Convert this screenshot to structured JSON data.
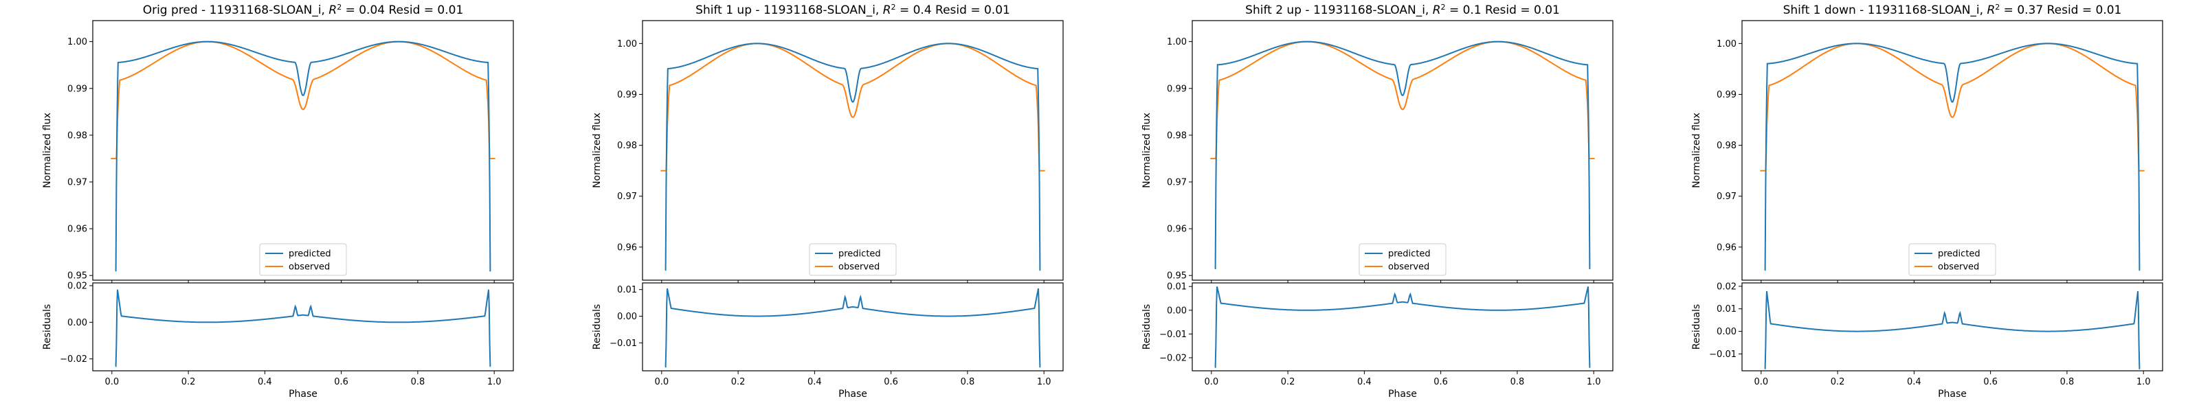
{
  "figure": {
    "background": "#ffffff"
  },
  "series_colors": {
    "predicted": "#1f77b4",
    "observed": "#ff7f0e",
    "residual": "#1f77b4"
  },
  "legend": {
    "placement": "lower center",
    "entries": [
      "predicted",
      "observed"
    ]
  },
  "chart_data": [
    {
      "type": "line",
      "title": "Orig pred - 11931168-SLOAN_i, R^2 = 0.04 Resid = 0.01",
      "title_parts": {
        "prefix": "Orig pred - 11931168-SLOAN_i, ",
        "r2_symbol": "R",
        "r2_exp": "2",
        "suffix": " = 0.04 Resid = 0.01"
      },
      "flux": {
        "ylabel": "Normalized flux",
        "xlim": [
          -0.05,
          1.05
        ],
        "ylim": [
          0.949,
          1.0045
        ],
        "yticks": [
          0.95,
          0.96,
          0.97,
          0.98,
          0.99,
          1.0
        ],
        "ytick_labels": [
          "0.95",
          "0.96",
          "0.97",
          "0.98",
          "0.99",
          "1.00"
        ],
        "predicted": {
          "edge": 0.951,
          "base": 0.9955,
          "dip": 0.9885
        },
        "observed": {
          "edge": 0.975,
          "base": 0.9915,
          "dip": 0.9855
        }
      },
      "residuals": {
        "ylabel": "Residuals",
        "xlabel": "Phase",
        "ylim": [
          -0.0265,
          0.0215
        ],
        "yticks": [
          -0.02,
          0.0,
          0.02
        ],
        "ytick_labels": [
          "−0.02",
          "0.00",
          "0.02"
        ],
        "xticks": [
          0.0,
          0.2,
          0.4,
          0.6,
          0.8,
          1.0
        ],
        "xtick_labels": [
          "0.0",
          "0.2",
          "0.4",
          "0.6",
          "0.8",
          "1.0"
        ],
        "edge_low": -0.024,
        "spike_high": 0.019,
        "base": 0.004,
        "peak": 0.009
      }
    },
    {
      "type": "line",
      "title": "Shift 1 up - 11931168-SLOAN_i, R^2 = 0.4 Resid = 0.01",
      "title_parts": {
        "prefix": "Shift 1 up - 11931168-SLOAN_i, ",
        "r2_symbol": "R",
        "r2_exp": "2",
        "suffix": " = 0.4 Resid = 0.01"
      },
      "flux": {
        "ylabel": "Normalized flux",
        "xlim": [
          -0.05,
          1.05
        ],
        "ylim": [
          0.9535,
          1.0045
        ],
        "yticks": [
          0.96,
          0.97,
          0.98,
          0.99,
          1.0
        ],
        "ytick_labels": [
          "0.96",
          "0.97",
          "0.98",
          "0.99",
          "1.00"
        ],
        "predicted": {
          "edge": 0.9555,
          "base": 0.995,
          "dip": 0.9885
        },
        "observed": {
          "edge": 0.975,
          "base": 0.9915,
          "dip": 0.9855
        }
      },
      "residuals": {
        "ylabel": "Residuals",
        "xlabel": "Phase",
        "ylim": [
          -0.0205,
          0.0125
        ],
        "yticks": [
          -0.01,
          0.0,
          0.01
        ],
        "ytick_labels": [
          "−0.01",
          "0.00",
          "0.01"
        ],
        "xticks": [
          0.0,
          0.2,
          0.4,
          0.6,
          0.8,
          1.0
        ],
        "xtick_labels": [
          "0.0",
          "0.2",
          "0.4",
          "0.6",
          "0.8",
          "1.0"
        ],
        "edge_low": -0.019,
        "spike_high": 0.011,
        "base": 0.0035,
        "peak": 0.0075
      }
    },
    {
      "type": "line",
      "title": "Shift 2 up - 11931168-SLOAN_i, R^2 = 0.1 Resid = 0.01",
      "title_parts": {
        "prefix": "Shift 2 up - 11931168-SLOAN_i, ",
        "r2_symbol": "R",
        "r2_exp": "2",
        "suffix": " = 0.1 Resid = 0.01"
      },
      "flux": {
        "ylabel": "Normalized flux",
        "xlim": [
          -0.05,
          1.05
        ],
        "ylim": [
          0.949,
          1.0045
        ],
        "yticks": [
          0.95,
          0.96,
          0.97,
          0.98,
          0.99,
          1.0
        ],
        "ytick_labels": [
          "0.95",
          "0.96",
          "0.97",
          "0.98",
          "0.99",
          "1.00"
        ],
        "predicted": {
          "edge": 0.9515,
          "base": 0.995,
          "dip": 0.9885
        },
        "observed": {
          "edge": 0.975,
          "base": 0.9915,
          "dip": 0.9855
        }
      },
      "residuals": {
        "ylabel": "Residuals",
        "xlabel": "Phase",
        "ylim": [
          -0.0255,
          0.0115
        ],
        "yticks": [
          -0.02,
          -0.01,
          0.0,
          0.01
        ],
        "ytick_labels": [
          "−0.02",
          "−0.01",
          "0.00",
          "0.01"
        ],
        "xticks": [
          0.0,
          0.2,
          0.4,
          0.6,
          0.8,
          1.0
        ],
        "xtick_labels": [
          "0.0",
          "0.2",
          "0.4",
          "0.6",
          "0.8",
          "1.0"
        ],
        "edge_low": -0.024,
        "spike_high": 0.0105,
        "base": 0.0035,
        "peak": 0.007
      }
    },
    {
      "type": "line",
      "title": "Shift 1 down - 11931168-SLOAN_i, R^2 = 0.37 Resid = 0.01",
      "title_parts": {
        "prefix": "Shift 1 down - 11931168-SLOAN_i, ",
        "r2_symbol": "R",
        "r2_exp": "2",
        "suffix": " = 0.37 Resid = 0.01"
      },
      "flux": {
        "ylabel": "Normalized flux",
        "xlim": [
          -0.05,
          1.05
        ],
        "ylim": [
          0.9535,
          1.0045
        ],
        "yticks": [
          0.96,
          0.97,
          0.98,
          0.99,
          1.0
        ],
        "ytick_labels": [
          "0.96",
          "0.97",
          "0.98",
          "0.99",
          "1.00"
        ],
        "predicted": {
          "edge": 0.9555,
          "base": 0.996,
          "dip": 0.9885
        },
        "observed": {
          "edge": 0.975,
          "base": 0.9915,
          "dip": 0.9855
        }
      },
      "residuals": {
        "ylabel": "Residuals",
        "xlabel": "Phase",
        "ylim": [
          -0.0175,
          0.0215
        ],
        "yticks": [
          -0.01,
          0.0,
          0.01,
          0.02
        ],
        "ytick_labels": [
          "−0.01",
          "0.00",
          "0.01",
          "0.02"
        ],
        "xticks": [
          0.0,
          0.2,
          0.4,
          0.6,
          0.8,
          1.0
        ],
        "xtick_labels": [
          "0.0",
          "0.2",
          "0.4",
          "0.6",
          "0.8",
          "1.0"
        ],
        "edge_low": -0.0165,
        "spike_high": 0.019,
        "base": 0.004,
        "peak": 0.0085
      }
    }
  ]
}
